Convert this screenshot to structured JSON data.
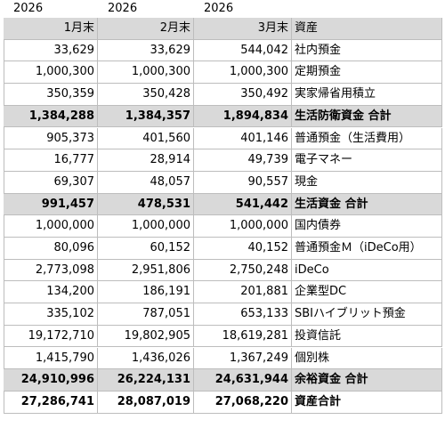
{
  "years": [
    "2026",
    "2026",
    "2026"
  ],
  "header": [
    "1月末",
    "2月末",
    "3月末",
    "資産"
  ],
  "rows": [
    [
      "33,629",
      "33,629",
      "544,042",
      "社内預金"
    ],
    [
      "1,000,300",
      "1,000,300",
      "1,000,300",
      "定期預金"
    ],
    [
      "350,359",
      "350,428",
      "350,492",
      "実家帰省用積立"
    ],
    [
      "1,384,288",
      "1,384,357",
      "1,894,834",
      "生活防衛資金 合計"
    ],
    [
      "905,373",
      "401,560",
      "401,146",
      "普通預金（生活費用）"
    ],
    [
      "16,777",
      "28,914",
      "49,739",
      "電子マネー"
    ],
    [
      "69,307",
      "48,057",
      "90,557",
      "現金"
    ],
    [
      "991,457",
      "478,531",
      "541,442",
      "生活資金 合計"
    ],
    [
      "1,000,000",
      "1,000,000",
      "1,000,000",
      "国内債券"
    ],
    [
      "80,096",
      "60,152",
      "40,152",
      "普通預金Ｍ（iDeCo用）"
    ],
    [
      "2,773,098",
      "2,951,806",
      "2,750,248",
      "iDeCo"
    ],
    [
      "134,200",
      "186,191",
      "201,881",
      "企業型DC"
    ],
    [
      "335,102",
      "787,051",
      "653,133",
      "SBIハイブリット預金"
    ],
    [
      "19,172,710",
      "19,802,905",
      "18,619,281",
      "投資信託"
    ],
    [
      "1,415,790",
      "1,436,026",
      "1,367,249",
      "個別株"
    ],
    [
      "24,910,996",
      "26,224,131",
      "24,631,944",
      "余裕資金 合計"
    ],
    [
      "27,286,741",
      "28,087,019",
      "27,068,220",
      "資産合計"
    ]
  ]
}
